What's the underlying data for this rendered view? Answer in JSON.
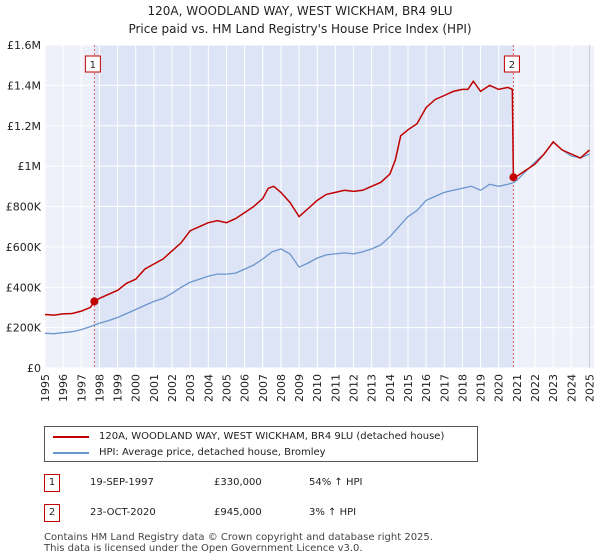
{
  "title_line1": "120A, WOODLAND WAY, WEST WICKHAM, BR4 9LU",
  "title_line2": "Price paid vs. HM Land Registry's House Price Index (HPI)",
  "colors": {
    "property": "#c00000",
    "hpi": "#6a96cd",
    "shade": "#dde4f5",
    "grid": "#ffffff",
    "vline": "#e06060"
  },
  "legend": {
    "property_label": "120A, WOODLAND WAY, WEST WICKHAM, BR4 9LU (detached house)",
    "hpi_label": "HPI: Average price, detached house, Bromley"
  },
  "transactions": [
    {
      "id": "1",
      "date": "19-SEP-1997",
      "price": "£330,000",
      "hpi": "54% ↑ HPI"
    },
    {
      "id": "2",
      "date": "23-OCT-2020",
      "price": "£945,000",
      "hpi": "3% ↑ HPI"
    }
  ],
  "footer": {
    "line1": "Contains HM Land Registry data © Crown copyright and database right 2025.",
    "line2": "This data is licensed under the Open Government Licence v3.0."
  },
  "chart_data": {
    "type": "line",
    "title": "120A, WOODLAND WAY, WEST WICKHAM, BR4 9LU — Price paid vs. HM Land Registry's House Price Index (HPI)",
    "xlabel": "",
    "ylabel": "",
    "xlim": [
      1995,
      2025.25
    ],
    "ylim": [
      0,
      1600000
    ],
    "yticks": [
      0,
      200000,
      400000,
      600000,
      800000,
      1000000,
      1200000,
      1400000,
      1600000
    ],
    "ytick_labels": [
      "£0",
      "£200K",
      "£400K",
      "£600K",
      "£800K",
      "£1M",
      "£1.2M",
      "£1.4M",
      "£1.6M"
    ],
    "xticks": [
      1995,
      1996,
      1997,
      1998,
      1999,
      2000,
      2001,
      2002,
      2003,
      2004,
      2005,
      2006,
      2007,
      2008,
      2009,
      2010,
      2011,
      2012,
      2013,
      2014,
      2015,
      2016,
      2017,
      2018,
      2019,
      2020,
      2021,
      2022,
      2023,
      2024,
      2025
    ],
    "shaded_range": [
      1997.72,
      2020.81
    ],
    "markers": [
      {
        "label": "1",
        "x": 1997.72,
        "y": 330000
      },
      {
        "label": "2",
        "x": 2020.81,
        "y": 945000
      }
    ],
    "series": [
      {
        "name": "120A, WOODLAND WAY, WEST WICKHAM, BR4 9LU (detached house)",
        "color": "#c00000",
        "x": [
          1995,
          1995.5,
          1996,
          1996.5,
          1997,
          1997.5,
          1997.72,
          1998,
          1998.5,
          1999,
          1999.5,
          2000,
          2000.5,
          2001,
          2001.5,
          2002,
          2002.5,
          2003,
          2003.5,
          2004,
          2004.5,
          2005,
          2005.5,
          2006,
          2006.5,
          2007,
          2007.3,
          2007.6,
          2008,
          2008.5,
          2009,
          2009.5,
          2010,
          2010.5,
          2011,
          2011.5,
          2012,
          2012.5,
          2013,
          2013.5,
          2014,
          2014.3,
          2014.6,
          2015,
          2015.5,
          2016,
          2016.5,
          2017,
          2017.5,
          2018,
          2018.3,
          2018.6,
          2019,
          2019.5,
          2020,
          2020.5,
          2020.75,
          2020.81,
          2021,
          2021.5,
          2022,
          2022.5,
          2023,
          2023.5,
          2024,
          2024.5,
          2025
        ],
        "y": [
          265000,
          262000,
          268000,
          270000,
          282000,
          300000,
          330000,
          345000,
          365000,
          385000,
          420000,
          440000,
          490000,
          515000,
          540000,
          580000,
          620000,
          680000,
          700000,
          720000,
          730000,
          720000,
          740000,
          770000,
          800000,
          840000,
          890000,
          900000,
          870000,
          820000,
          750000,
          790000,
          830000,
          860000,
          870000,
          880000,
          875000,
          880000,
          900000,
          920000,
          960000,
          1030000,
          1150000,
          1180000,
          1210000,
          1290000,
          1330000,
          1350000,
          1370000,
          1380000,
          1380000,
          1420000,
          1370000,
          1400000,
          1380000,
          1390000,
          1380000,
          945000,
          950000,
          980000,
          1010000,
          1060000,
          1120000,
          1080000,
          1060000,
          1040000,
          1080000
        ]
      },
      {
        "name": "HPI: Average price, detached house, Bromley",
        "color": "#6a96cd",
        "x": [
          1995,
          1995.5,
          1996,
          1996.5,
          1997,
          1997.5,
          1998,
          1998.5,
          1999,
          1999.5,
          2000,
          2000.5,
          2001,
          2001.5,
          2002,
          2002.5,
          2003,
          2003.5,
          2004,
          2004.5,
          2005,
          2005.5,
          2006,
          2006.5,
          2007,
          2007.5,
          2008,
          2008.5,
          2009,
          2009.5,
          2010,
          2010.5,
          2011,
          2011.5,
          2012,
          2012.5,
          2013,
          2013.5,
          2014,
          2014.5,
          2015,
          2015.5,
          2016,
          2016.5,
          2017,
          2017.5,
          2018,
          2018.5,
          2019,
          2019.5,
          2020,
          2020.5,
          2020.81,
          2021,
          2021.5,
          2022,
          2022.5,
          2023,
          2023.5,
          2024,
          2024.5,
          2025
        ],
        "y": [
          172000,
          170000,
          175000,
          180000,
          190000,
          205000,
          222000,
          235000,
          250000,
          270000,
          290000,
          310000,
          330000,
          345000,
          370000,
          400000,
          425000,
          440000,
          455000,
          465000,
          465000,
          470000,
          490000,
          510000,
          540000,
          575000,
          590000,
          565000,
          500000,
          520000,
          545000,
          560000,
          565000,
          570000,
          565000,
          575000,
          590000,
          610000,
          650000,
          700000,
          750000,
          780000,
          830000,
          850000,
          870000,
          880000,
          890000,
          900000,
          880000,
          910000,
          900000,
          910000,
          918000,
          930000,
          975000,
          1020000,
          1060000,
          1120000,
          1080000,
          1050000,
          1040000,
          1060000
        ]
      }
    ]
  }
}
